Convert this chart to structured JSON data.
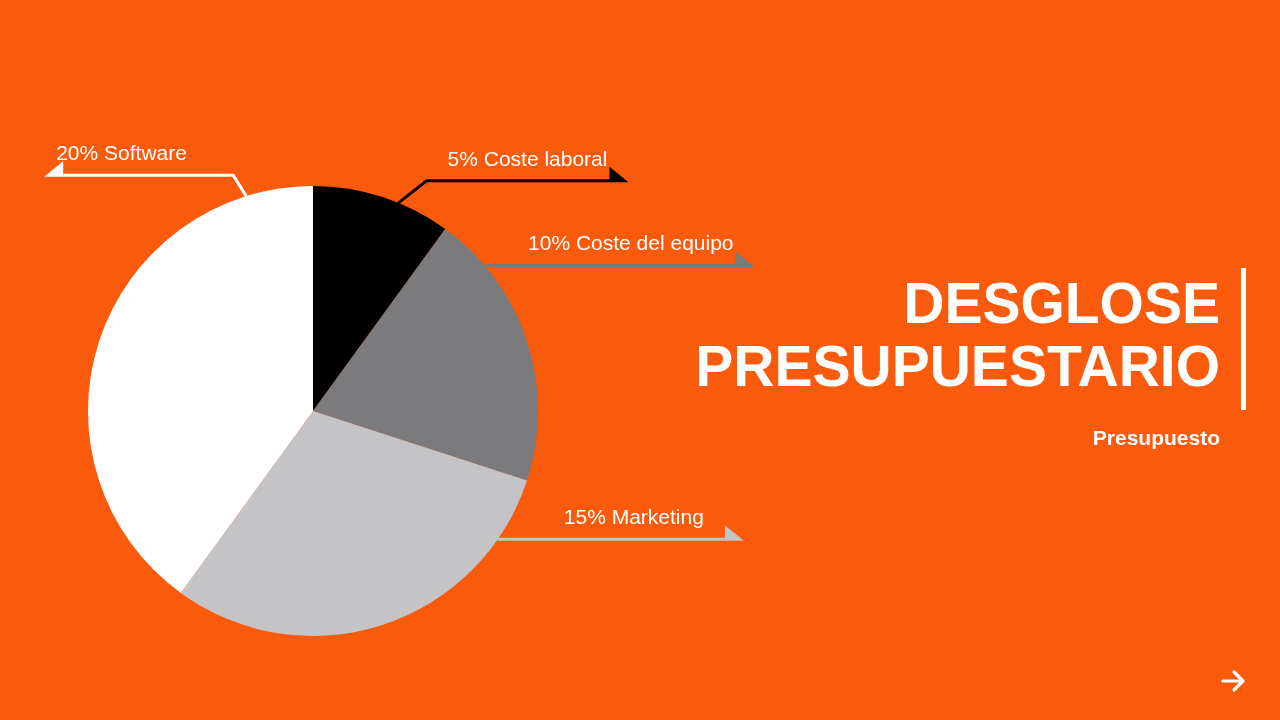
{
  "chart_data": {
    "type": "pie",
    "title": "DESGLOSE PRESUPUESTARIO",
    "subtitle": "Presupuesto",
    "categories": [
      "Coste laboral",
      "Coste del equipo",
      "Marketing",
      "Software"
    ],
    "values": [
      5,
      10,
      15,
      20
    ],
    "value_labels": [
      "5%",
      "10%",
      "15%",
      "20%"
    ],
    "colors": [
      "#000000",
      "#7b7a7c",
      "#c4c3c5",
      "#ffffff"
    ]
  }
}
